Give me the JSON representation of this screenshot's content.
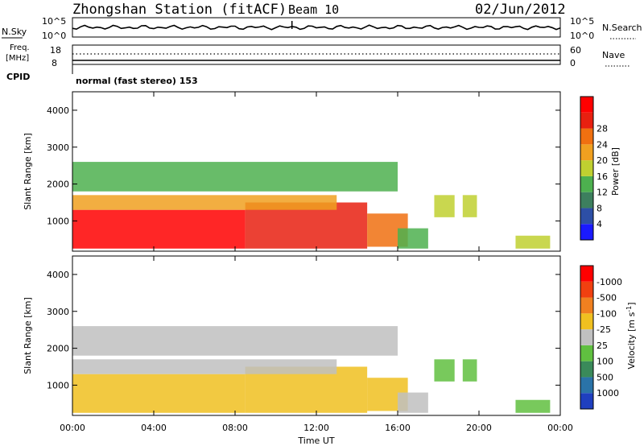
{
  "header": {
    "station": "Zhongshan Station (fitACF)",
    "beam": "Beam 10",
    "date": "02/Jun/2012"
  },
  "noise_panel": {
    "left_label": "N.Sky",
    "left_ticks": [
      "10^5",
      "10^0"
    ],
    "right_ticks": [
      "10^5",
      "10^0"
    ],
    "right_label": "N.Search"
  },
  "freq_panel": {
    "left_label_1": "Freq.",
    "left_label_2": "[MHz]",
    "left_ticks": [
      "18",
      "8"
    ],
    "right_ticks": [
      "60",
      "0"
    ],
    "right_label": "Nave"
  },
  "cpid": {
    "label": "CPID",
    "text": "normal (fast stereo) 153"
  },
  "xaxis": {
    "ticks": [
      "00:00",
      "04:00",
      "08:00",
      "12:00",
      "16:00",
      "20:00",
      "00:00"
    ],
    "label": "Time UT"
  },
  "range_axis": {
    "label": "Slant Range [km]",
    "ticks": [
      "1000",
      "2000",
      "3000",
      "4000"
    ]
  },
  "power_bar": {
    "label": "Power [dB]",
    "ticks": [
      "4",
      "8",
      "12",
      "16",
      "20",
      "24",
      "28"
    ],
    "colors": [
      "#1a1aff",
      "#2d4fa6",
      "#3d7f5e",
      "#4db04f",
      "#c0d030",
      "#f0a020",
      "#f07010",
      "#e82010",
      "#ff0000"
    ]
  },
  "velocity_bar": {
    "label": "Velocity [m s",
    "label_sup": "-1",
    "label_end": "]",
    "ticks": [
      "1000",
      "500",
      "100",
      "25",
      "-25",
      "-100",
      "-500",
      "-1000"
    ],
    "colors": [
      "#1f3fbf",
      "#2a73a8",
      "#3a8a5a",
      "#60c040",
      "#c0c0c0",
      "#f0c020",
      "#f08020",
      "#f04010",
      "#ff0000"
    ]
  },
  "chart_data": [
    {
      "type": "heatmap",
      "title": "Power [dB]",
      "xlabel": "Time UT",
      "ylabel": "Slant Range [km]",
      "xlim": [
        0,
        24
      ],
      "ylim": [
        180,
        4500
      ],
      "colorbar_range": [
        0,
        30
      ],
      "regions": [
        {
          "t0": 0.0,
          "t1": 8.5,
          "r0": 250,
          "r1": 1300,
          "value": 30
        },
        {
          "t0": 8.5,
          "t1": 14.5,
          "r0": 250,
          "r1": 1500,
          "value": 26
        },
        {
          "t0": 0.0,
          "t1": 13.0,
          "r0": 1300,
          "r1": 1700,
          "value": 18
        },
        {
          "t0": 14.5,
          "t1": 16.5,
          "r0": 300,
          "r1": 1200,
          "value": 22
        },
        {
          "t0": 16.0,
          "t1": 17.5,
          "r0": 250,
          "r1": 800,
          "value": 12
        },
        {
          "t0": 21.8,
          "t1": 23.5,
          "r0": 250,
          "r1": 600,
          "value": 14
        },
        {
          "t0": 17.8,
          "t1": 18.8,
          "r0": 1100,
          "r1": 1700,
          "value": 14
        },
        {
          "t0": 19.2,
          "t1": 19.9,
          "r0": 1100,
          "r1": 1700,
          "value": 14
        },
        {
          "t0": 0.0,
          "t1": 16.0,
          "r0": 1800,
          "r1": 2600,
          "value": 10
        }
      ]
    },
    {
      "type": "heatmap",
      "title": "Velocity [m s-1]",
      "xlabel": "Time UT",
      "ylabel": "Slant Range [km]",
      "xlim": [
        0,
        24
      ],
      "ylim": [
        180,
        4500
      ],
      "colorbar_range": [
        -1000,
        1000
      ],
      "regions": [
        {
          "t0": 0.0,
          "t1": 8.5,
          "r0": 250,
          "r1": 1300,
          "value": -200
        },
        {
          "t0": 8.5,
          "t1": 14.5,
          "r0": 250,
          "r1": 1500,
          "value": -300
        },
        {
          "t0": 0.0,
          "t1": 13.0,
          "r0": 1300,
          "r1": 1700,
          "value": -60
        },
        {
          "t0": 14.5,
          "t1": 16.5,
          "r0": 300,
          "r1": 1200,
          "value": -150
        },
        {
          "t0": 16.0,
          "t1": 17.5,
          "r0": 250,
          "r1": 800,
          "value": 80
        },
        {
          "t0": 21.8,
          "t1": 23.5,
          "r0": 250,
          "r1": 600,
          "value": 120
        },
        {
          "t0": 17.8,
          "t1": 18.8,
          "r0": 1100,
          "r1": 1700,
          "value": 150
        },
        {
          "t0": 19.2,
          "t1": 19.9,
          "r0": 1100,
          "r1": 1700,
          "value": 150
        },
        {
          "t0": 0.0,
          "t1": 16.0,
          "r0": 1800,
          "r1": 2600,
          "value": -40
        }
      ]
    }
  ]
}
